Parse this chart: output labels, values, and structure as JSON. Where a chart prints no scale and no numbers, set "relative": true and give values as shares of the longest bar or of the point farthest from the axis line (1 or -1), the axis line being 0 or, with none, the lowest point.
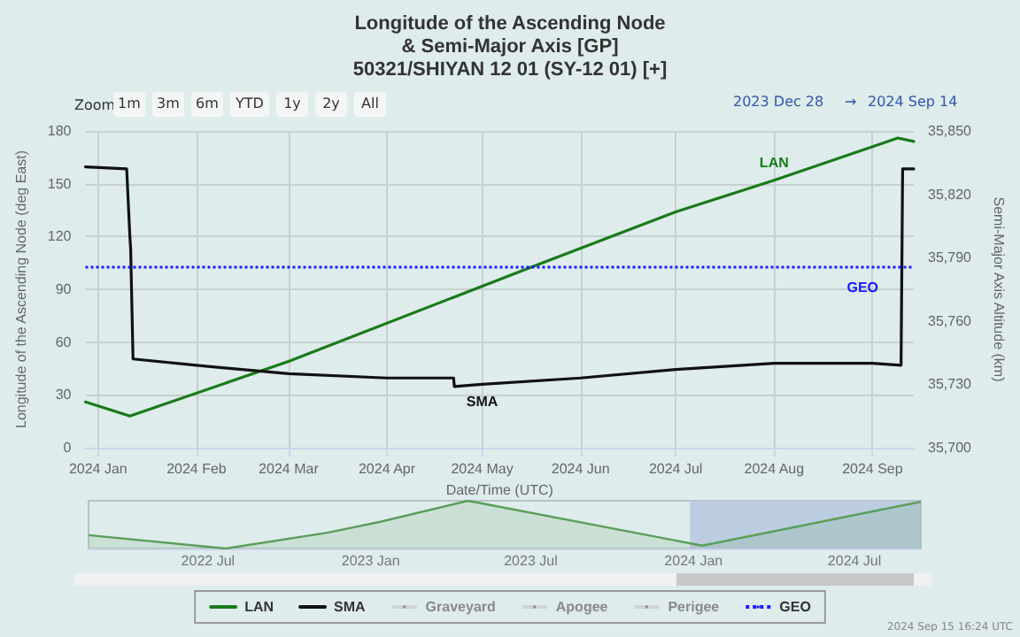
{
  "chart_data": [
    {
      "type": "line",
      "title": "Longitude of the Ascending Node\n& Semi-Major Axis [GP]\n50321/SHIYAN 12 01 (SY-12 01) [+]",
      "xlabel": "Date/Time (UTC)",
      "ylabel": "Longitude of the Ascending Node (deg East)",
      "y2label": "Semi-Major Axis Altitude (km)",
      "annotations": [
        "Zoom",
        "1m",
        "3m",
        "6m",
        "YTD",
        "1y",
        "2y",
        "All",
        "2023 Dec 28",
        "→",
        "2024 Sep 14",
        "2024 Sep 15 16:24 UTC"
      ],
      "series": [
        {
          "name": "LAN",
          "color": "#1a7a1a",
          "x": [
            "2023-12-28",
            "2024-01-11",
            "2024-03-01",
            "2024-05-17",
            "2024-07-01",
            "2024-08-01",
            "2024-09-09",
            "2024-09-14"
          ],
          "values": [
            26,
            18,
            49,
            103,
            134,
            152,
            176,
            174
          ]
        },
        {
          "name": "SMA",
          "color": "#111111",
          "axis": "y2",
          "x": [
            "2023-12-28",
            "2024-01-10",
            "2024-01-11",
            "2024-01-11T06:00",
            "2024-01-12",
            "2024-02-01",
            "2024-03-01",
            "2024-04-01",
            "2024-04-22",
            "2024-04-22T06:00",
            "2024-05-01",
            "2024-06-01",
            "2024-07-01",
            "2024-08-01",
            "2024-09-01",
            "2024-09-10",
            "2024-09-10T12:00",
            "2024-09-14"
          ],
          "values": [
            35833,
            35832,
            35800,
            35794,
            35742,
            35739,
            35735,
            35733,
            35733,
            35729,
            35730,
            35733,
            35737,
            35740,
            35740,
            35739,
            35832,
            35832
          ]
        },
        {
          "name": "Graveyard"
        },
        {
          "name": "Apogee"
        },
        {
          "name": "Perigee"
        }
      ],
      "ref_lines": [
        {
          "axis": "y2",
          "value": 35786,
          "label": "GEO",
          "color": "#1a1aff",
          "line_style": "dotted"
        }
      ],
      "xlim": [
        "2023-12-28",
        "2024-09-14"
      ],
      "xticks": [
        {
          "value": "2024-01-01",
          "label": "2024 Jan"
        },
        {
          "value": "2024-02-01",
          "label": "2024 Feb"
        },
        {
          "value": "2024-03-01",
          "label": "2024 Mar"
        },
        {
          "value": "2024-04-01",
          "label": "2024 Apr"
        },
        {
          "value": "2024-05-01",
          "label": "2024 May"
        },
        {
          "value": "2024-06-01",
          "label": "2024 Jun"
        },
        {
          "value": "2024-07-01",
          "label": "2024 Jul"
        },
        {
          "value": "2024-08-01",
          "label": "2024 Aug"
        },
        {
          "value": "2024-09-01",
          "label": "2024 Sep"
        }
      ],
      "ylim": [
        0,
        180
      ],
      "yticks": [
        0,
        30,
        60,
        90,
        120,
        150,
        180
      ],
      "y2lim": [
        35700,
        35850
      ],
      "y2ticks": [
        {
          "value": 35700,
          "label": "35,700"
        },
        {
          "value": 35730,
          "label": "35,730"
        },
        {
          "value": 35760,
          "label": "35,760"
        },
        {
          "value": 35790,
          "label": "35,790"
        },
        {
          "value": 35820,
          "label": "35,820"
        },
        {
          "value": 35850,
          "label": "35,850"
        }
      ],
      "grid": true,
      "legend": "bottom",
      "marker": "none",
      "line_style": "solid"
    },
    {
      "type": "area",
      "relative": true,
      "color": "#5a9e5a",
      "x": [
        "2022-02-16",
        "2022-07-21",
        "2022-11-13",
        "2023-01-12",
        "2023-04-21",
        "2024-01-11",
        "2024-09-14"
      ],
      "values": [
        0.28,
        0,
        0.33,
        0.56,
        1,
        0.06,
        0.98
      ],
      "xlim": [
        "2022-02-16",
        "2024-09-14"
      ],
      "xticks": [
        {
          "value": "2022-07-01",
          "label": "2022 Jul"
        },
        {
          "value": "2023-01-01",
          "label": "2023 Jan"
        },
        {
          "value": "2023-07-01",
          "label": "2023 Jul"
        },
        {
          "value": "2024-01-01",
          "label": "2024 Jan"
        },
        {
          "value": "2024-07-01",
          "label": "2024 Jul"
        }
      ],
      "bands": [
        {
          "axis": "x",
          "from": "2023-12-28",
          "to": "2024-09-14",
          "color": "#b4c6de"
        }
      ]
    }
  ]
}
